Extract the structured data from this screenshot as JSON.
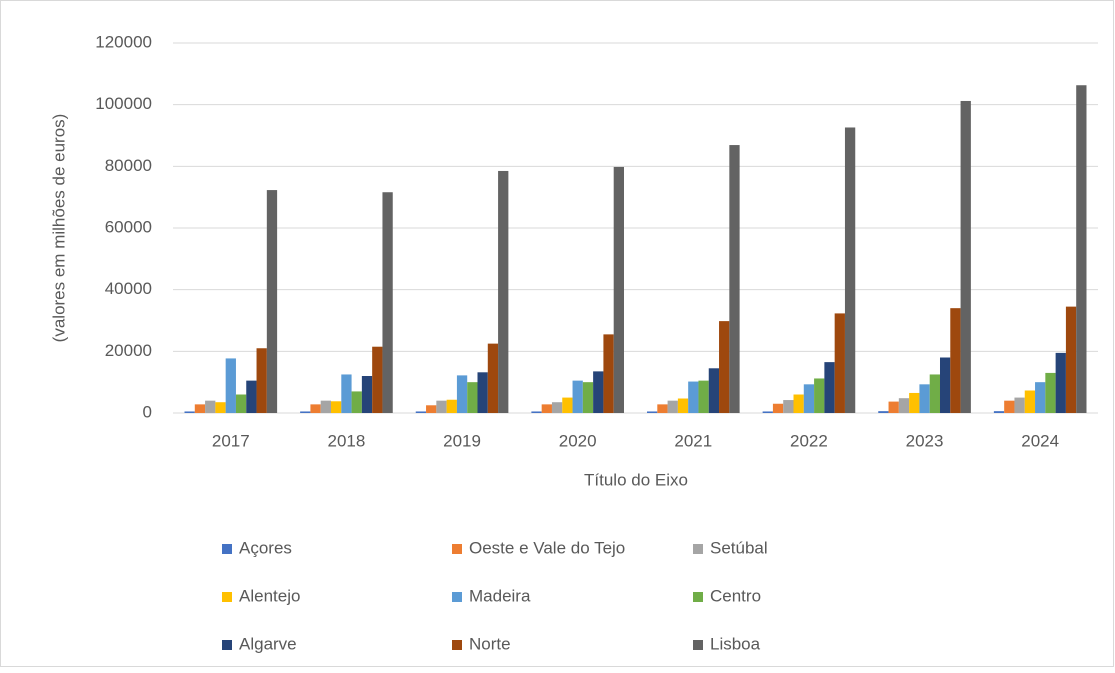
{
  "chart_data": {
    "type": "bar",
    "y_label": "(valores em milhões de euros)",
    "x_label": "Título do Eixo",
    "categories": [
      "2017",
      "2018",
      "2019",
      "2020",
      "2021",
      "2022",
      "2023",
      "2024"
    ],
    "ylim": [
      0,
      120000
    ],
    "yticks": [
      0,
      20000,
      40000,
      60000,
      80000,
      100000,
      120000
    ],
    "grid": true,
    "legend": "bottom",
    "series": [
      {
        "name": "Açores",
        "color": "#4472c4",
        "values": [
          500,
          500,
          500,
          500,
          500,
          500,
          600,
          600
        ]
      },
      {
        "name": "Oeste e Vale do Tejo",
        "color": "#ed7d31",
        "values": [
          2800,
          2800,
          2500,
          2800,
          2800,
          3000,
          3700,
          4000
        ]
      },
      {
        "name": "Setúbal",
        "color": "#a5a5a5",
        "values": [
          4000,
          4000,
          4000,
          3500,
          4000,
          4200,
          4800,
          5000
        ]
      },
      {
        "name": "Alentejo",
        "color": "#ffc000",
        "values": [
          3500,
          3800,
          4300,
          5000,
          4700,
          6000,
          6500,
          7300
        ]
      },
      {
        "name": "Madeira",
        "color": "#5b9bd5",
        "values": [
          17700,
          12500,
          12200,
          10500,
          10200,
          9300,
          9300,
          10000
        ]
      },
      {
        "name": "Centro",
        "color": "#70ad47",
        "values": [
          6000,
          7000,
          10000,
          10000,
          10500,
          11200,
          12500,
          13000
        ]
      },
      {
        "name": "Algarve",
        "color": "#264478",
        "values": [
          10500,
          12000,
          13200,
          13500,
          14500,
          16500,
          18000,
          19500
        ]
      },
      {
        "name": "Norte",
        "color": "#9e480e",
        "values": [
          21000,
          21500,
          22500,
          25500,
          29800,
          32300,
          34000,
          34500
        ]
      },
      {
        "name": "Lisboa",
        "color": "#636363",
        "values": [
          72300,
          71600,
          78500,
          79800,
          86900,
          92600,
          101200,
          106300
        ]
      }
    ]
  }
}
